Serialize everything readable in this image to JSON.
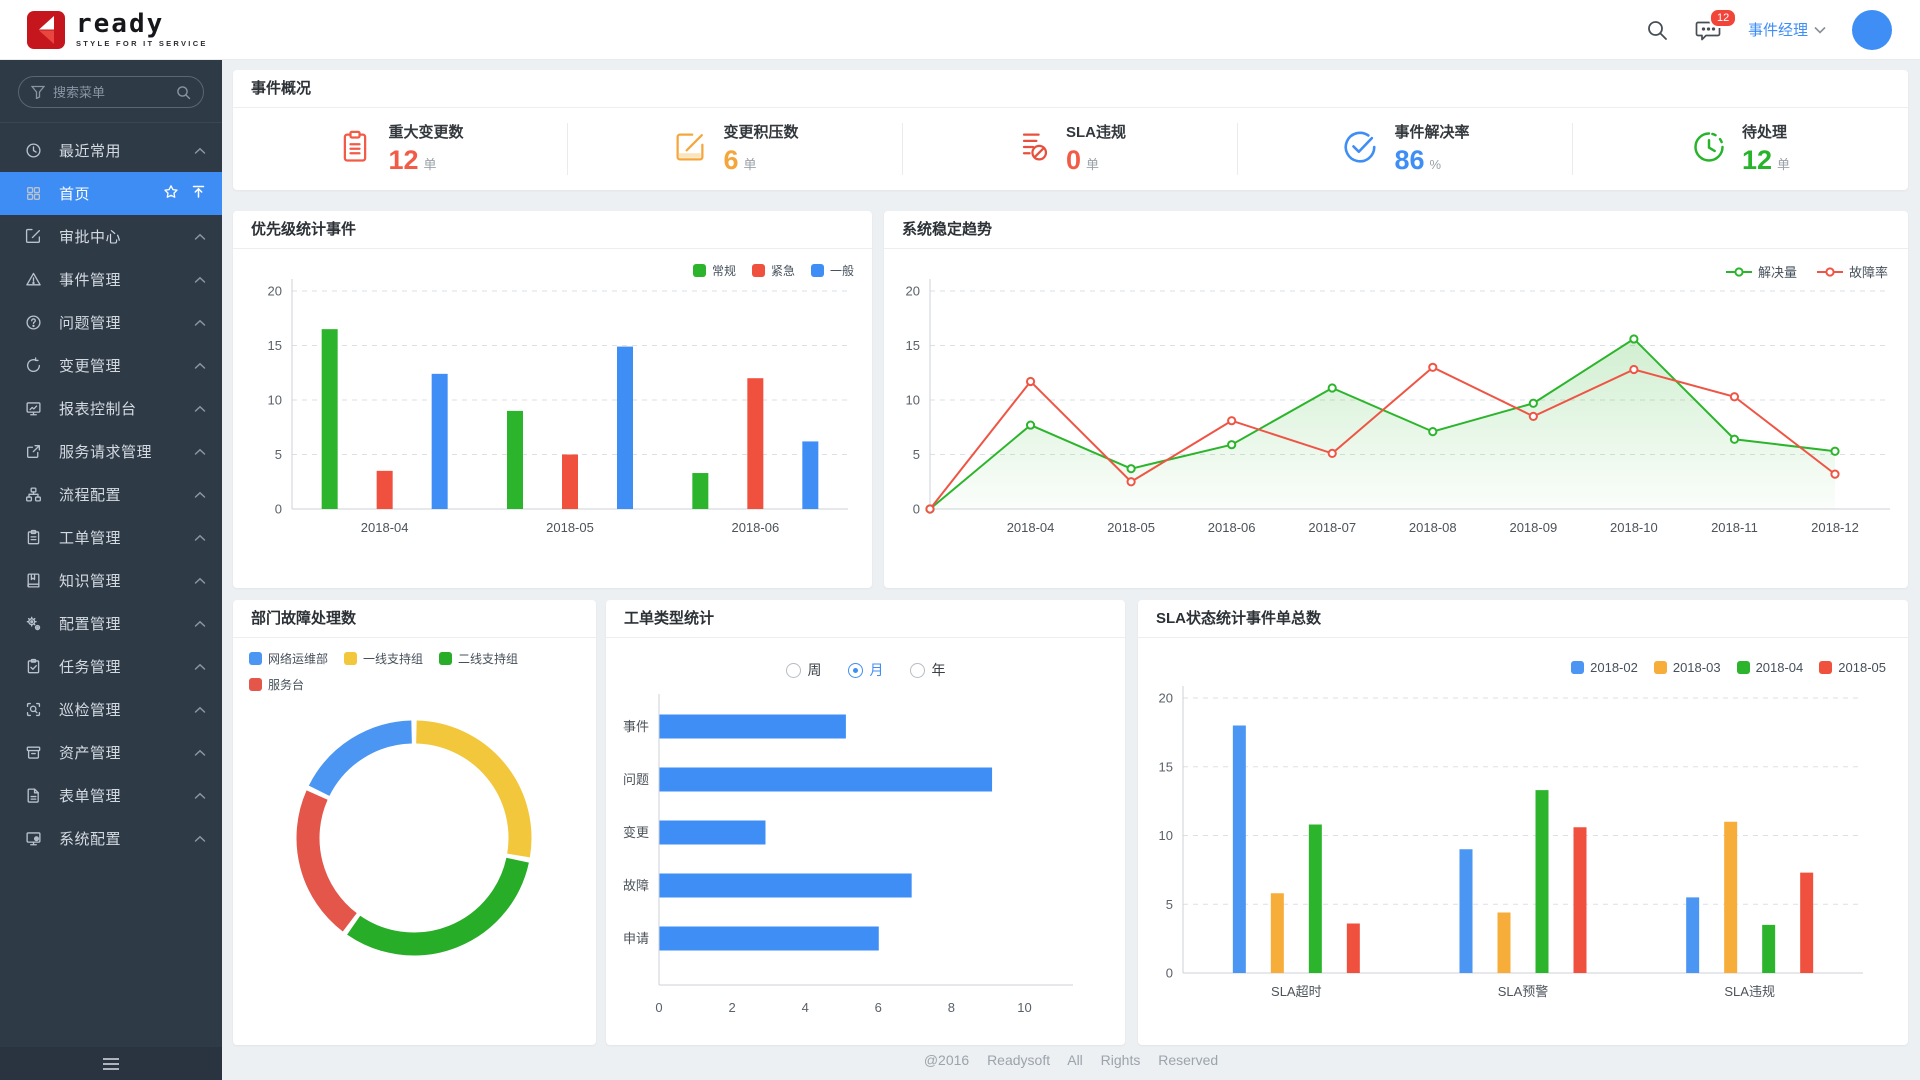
{
  "header": {
    "logo_text": "ready",
    "logo_tagline": "STYLE FOR IT SERVICE",
    "notification_count": "12",
    "user_role": "事件经理"
  },
  "sidebar": {
    "search_placeholder": "搜索菜单",
    "items": [
      {
        "label": "最近常用",
        "icon": "clock-icon",
        "active": false
      },
      {
        "label": "首页",
        "icon": "grid-icon",
        "active": true
      },
      {
        "label": "审批中心",
        "icon": "edit-square-icon",
        "active": false
      },
      {
        "label": "事件管理",
        "icon": "alert-triangle-icon",
        "active": false
      },
      {
        "label": "问题管理",
        "icon": "help-circle-icon",
        "active": false
      },
      {
        "label": "变更管理",
        "icon": "sync-icon",
        "active": false
      },
      {
        "label": "报表控制台",
        "icon": "monitor-chart-icon",
        "active": false
      },
      {
        "label": "服务请求管理",
        "icon": "external-link-icon",
        "active": false
      },
      {
        "label": "流程配置",
        "icon": "sitemap-icon",
        "active": false
      },
      {
        "label": "工单管理",
        "icon": "clipboard-icon",
        "active": false
      },
      {
        "label": "知识管理",
        "icon": "book-icon",
        "active": false
      },
      {
        "label": "配置管理",
        "icon": "gears-icon",
        "active": false
      },
      {
        "label": "任务管理",
        "icon": "task-check-icon",
        "active": false
      },
      {
        "label": "巡检管理",
        "icon": "scan-icon",
        "active": false
      },
      {
        "label": "资产管理",
        "icon": "archive-icon",
        "active": false
      },
      {
        "label": "表单管理",
        "icon": "file-icon",
        "active": false
      },
      {
        "label": "系统配置",
        "icon": "monitor-gear-icon",
        "active": false
      }
    ]
  },
  "overview": {
    "title": "事件概况",
    "kpis": [
      {
        "label": "重大变更数",
        "value": "12",
        "unit": "单",
        "icon": "clipboard-red-icon",
        "color": "#f25b45"
      },
      {
        "label": "变更积压数",
        "value": "6",
        "unit": "单",
        "icon": "edit-orange-icon",
        "color": "#f5a63b"
      },
      {
        "label": "SLA违规",
        "value": "0",
        "unit": "单",
        "icon": "doc-block-icon",
        "color": "#f25b45"
      },
      {
        "label": "事件解决率",
        "value": "86",
        "unit": "%",
        "icon": "check-circle-icon",
        "color": "#3e8ef5"
      },
      {
        "label": "待处理",
        "value": "12",
        "unit": "单",
        "icon": "clock-green-icon",
        "color": "#27b42a"
      }
    ]
  },
  "chart_data": [
    {
      "id": "priority",
      "type": "bar",
      "title": "优先级统计事件",
      "categories": [
        "2018-04",
        "2018-05",
        "2018-06"
      ],
      "series": [
        {
          "name": "常规",
          "color": "#2cb52c",
          "values": [
            16.5,
            9,
            3.3
          ]
        },
        {
          "name": "紧急",
          "color": "#f0513f",
          "values": [
            3.5,
            5,
            12
          ]
        },
        {
          "name": "一般",
          "color": "#3e8ef5",
          "values": [
            12.4,
            14.9,
            6.2
          ]
        }
      ],
      "ylim": [
        0,
        20
      ],
      "yticks": [
        0,
        5,
        10,
        15,
        20
      ],
      "grid": "dashed",
      "legend_position": "top-right"
    },
    {
      "id": "stability",
      "type": "line",
      "title": "系统稳定趋势",
      "categories": [
        "2018-04",
        "2018-05",
        "2018-06",
        "2018-07",
        "2018-08",
        "2018-09",
        "2018-10",
        "2018-11",
        "2018-12"
      ],
      "starts_at_origin": true,
      "series": [
        {
          "name": "解决量",
          "color": "#2cb52c",
          "area": true,
          "values": [
            0,
            7.7,
            3.7,
            5.9,
            11.1,
            7.1,
            9.7,
            15.6,
            6.4,
            5.3
          ]
        },
        {
          "name": "故障率",
          "color": "#ef5545",
          "area": false,
          "values": [
            0,
            11.7,
            2.5,
            8.1,
            5.1,
            13,
            8.5,
            12.8,
            10.3,
            3.2
          ]
        }
      ],
      "ylim": [
        0,
        20
      ],
      "yticks": [
        0,
        5,
        10,
        15,
        20
      ],
      "grid": "dashed",
      "legend_position": "top-right"
    },
    {
      "id": "departments",
      "type": "pie",
      "title": "部门故障处理数",
      "donut": true,
      "labels": [
        "网络运维部",
        "一线支持组",
        "二线支持组",
        "服务台"
      ],
      "colors": [
        "#4a96f2",
        "#f3c73b",
        "#28ad28",
        "#e4554a"
      ],
      "values": [
        18,
        28,
        32,
        22
      ],
      "draw_order": [
        1,
        2,
        3,
        0
      ],
      "legend_position": "top-left"
    },
    {
      "id": "tickets",
      "type": "bar-horizontal",
      "title": "工单类型统计",
      "radio_options": [
        "周",
        "月",
        "年"
      ],
      "radio_selected": 1,
      "categories": [
        "事件",
        "问题",
        "变更",
        "故障",
        "申请"
      ],
      "values": [
        5.1,
        9.1,
        2.9,
        6.9,
        6
      ],
      "color": "#3e8ef5",
      "xlim": [
        0,
        11
      ],
      "xticks": [
        0,
        2,
        4,
        6,
        8,
        10
      ],
      "grid": "off"
    },
    {
      "id": "sla",
      "type": "bar",
      "title": "SLA状态统计事件单总数",
      "categories": [
        "SLA超时",
        "SLA预警",
        "SLA违规"
      ],
      "series": [
        {
          "name": "2018-02",
          "color": "#4a96f2",
          "values": [
            18,
            9,
            5.5
          ]
        },
        {
          "name": "2018-03",
          "color": "#f6ad3a",
          "values": [
            5.8,
            4.4,
            11
          ]
        },
        {
          "name": "2018-04",
          "color": "#2cb52c",
          "values": [
            10.8,
            13.3,
            3.5
          ]
        },
        {
          "name": "2018-05",
          "color": "#f0513f",
          "values": [
            3.6,
            10.6,
            7.3
          ]
        }
      ],
      "ylim": [
        0,
        20
      ],
      "yticks": [
        0,
        5,
        10,
        15,
        20
      ],
      "grid": "dashed",
      "legend_position": "top-right"
    }
  ],
  "footer": {
    "copyright": "@2016 Readysoft All Rights Reserved"
  },
  "colors": {
    "accent": "#3e8ef5",
    "sidebar_bg": "#2f3a47",
    "main_bg": "#edf0f2"
  }
}
